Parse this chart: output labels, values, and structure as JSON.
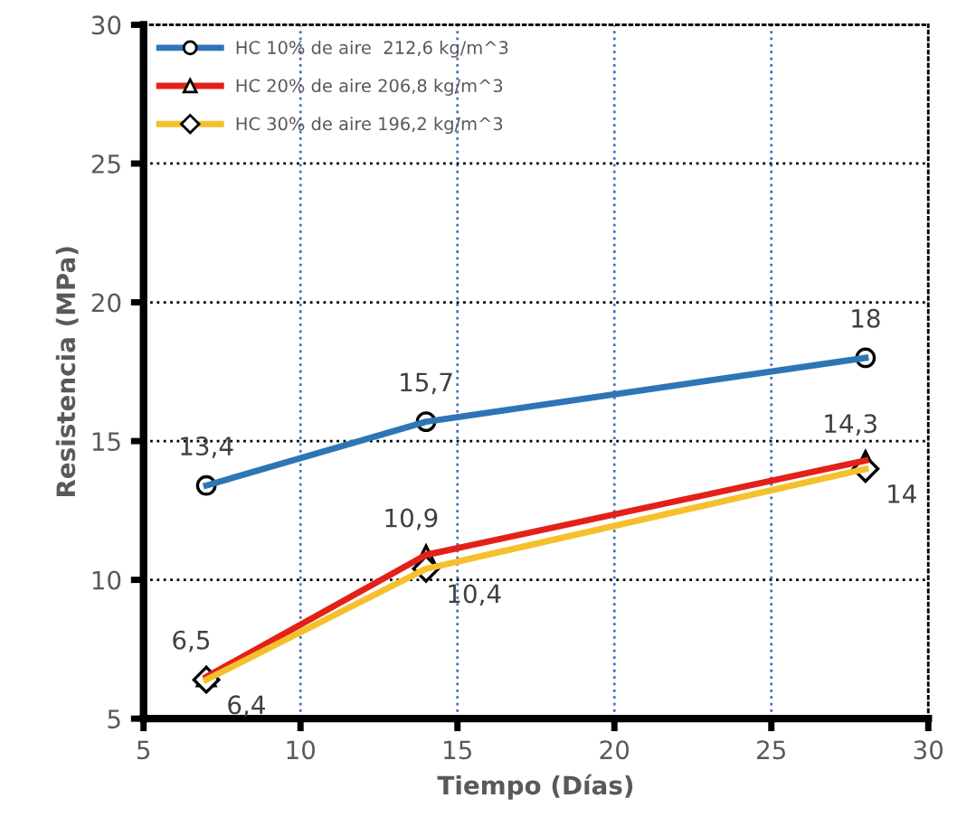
{
  "chart_data": {
    "type": "line",
    "xlabel": "Tiempo (Días)",
    "ylabel": "Resistencia (MPa)",
    "x": [
      7,
      14,
      28
    ],
    "series": [
      {
        "name": "HC 10% de aire  212,6 kg/m^3",
        "color": "#2e75b6",
        "marker": "circle",
        "values": [
          13.4,
          15.7,
          18
        ],
        "value_labels": [
          "13,4",
          "15,7",
          "18"
        ]
      },
      {
        "name": "HC 20% de aire 206,8 kg/m^3",
        "color": "#e32119",
        "marker": "triangle",
        "values": [
          6.5,
          10.9,
          14.3
        ],
        "value_labels": [
          "6,5",
          "10,9",
          "14,3"
        ]
      },
      {
        "name": "HC 30% de aire 196,2 kg/m^3",
        "color": "#f5c02c",
        "marker": "diamond",
        "values": [
          6.4,
          10.4,
          14
        ],
        "value_labels": [
          "6,4",
          "10,4",
          "14"
        ]
      }
    ],
    "xlim": [
      5,
      30
    ],
    "xticks": [
      5,
      10,
      15,
      20,
      25,
      30
    ],
    "ylim": [
      5,
      30
    ],
    "yticks": [
      5,
      10,
      15,
      20,
      25,
      30
    ],
    "grid": true,
    "legend": "top left",
    "line_style": "solid"
  }
}
